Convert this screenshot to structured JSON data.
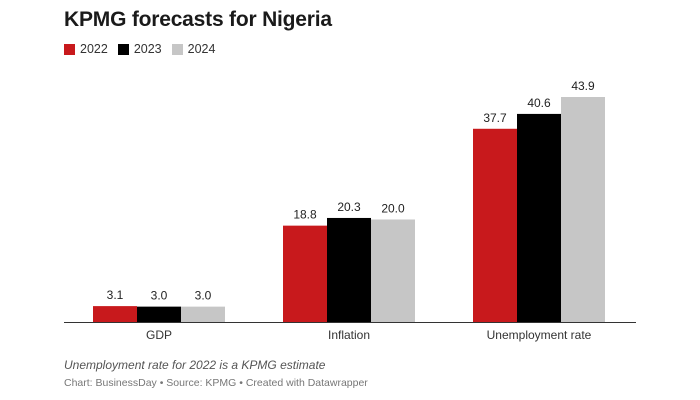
{
  "title": "KPMG forecasts for Nigeria",
  "note": "Unemployment rate for 2022 is a KPMG estimate",
  "source": "Chart: BusinessDay • Source: KPMG • Created with Datawrapper",
  "chart_data": {
    "type": "bar",
    "title": "KPMG forecasts for Nigeria",
    "categories": [
      "GDP",
      "Inflation",
      "Unemployment rate"
    ],
    "series": [
      {
        "name": "2022",
        "color": "#c8191c",
        "values": [
          3.1,
          18.8,
          37.7
        ],
        "labels": [
          "3.1",
          "18.8",
          "37.7"
        ]
      },
      {
        "name": "2023",
        "color": "#000000",
        "values": [
          3.0,
          20.3,
          40.6
        ],
        "labels": [
          "3.0",
          "20.3",
          "40.6"
        ]
      },
      {
        "name": "2024",
        "color": "#c6c6c6",
        "values": [
          3.0,
          20.0,
          43.9
        ],
        "labels": [
          "3.0",
          "20.0",
          "43.9"
        ]
      }
    ],
    "ylim": [
      0,
      43.9
    ],
    "grid": false,
    "legend": "top-left",
    "xlabel": "",
    "ylabel": ""
  }
}
